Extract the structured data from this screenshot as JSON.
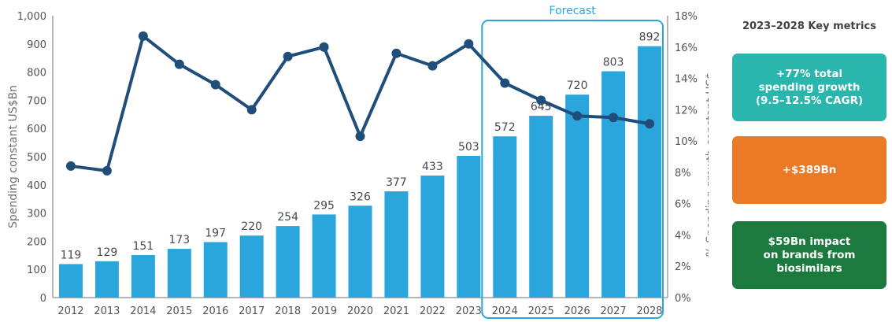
{
  "chart_data": {
    "type": "bar",
    "categories": [
      "2012",
      "2013",
      "2014",
      "2015",
      "2016",
      "2017",
      "2018",
      "2019",
      "2020",
      "2021",
      "2022",
      "2023",
      "2024",
      "2025",
      "2026",
      "2027",
      "2028"
    ],
    "series": [
      {
        "kind": "bar",
        "axis": "left",
        "values": [
          119,
          129,
          151,
          173,
          197,
          220,
          254,
          295,
          326,
          377,
          433,
          503,
          572,
          645,
          720,
          803,
          892
        ]
      },
      {
        "kind": "line",
        "axis": "right",
        "values": [
          8.4,
          8.1,
          16.7,
          14.9,
          13.6,
          12.0,
          15.4,
          16.0,
          10.3,
          15.6,
          14.8,
          16.2,
          13.7,
          12.6,
          11.6,
          11.5,
          11.1
        ]
      }
    ],
    "ylabel": "Spending constant US$Bn",
    "y2label": "% Spending growth constant US$",
    "ylim": [
      0,
      1000
    ],
    "yticks": [
      "0",
      "100",
      "200",
      "300",
      "400",
      "500",
      "600",
      "700",
      "800",
      "900",
      "1,000"
    ],
    "y2lim": [
      0,
      18
    ],
    "y2ticks": [
      "0%",
      "2%",
      "4%",
      "6%",
      "8%",
      "10%",
      "12%",
      "14%",
      "16%",
      "18%"
    ],
    "annotation": {
      "label": "Forecast",
      "from": "2024",
      "to": "2028"
    },
    "grid": false,
    "legend": "none"
  },
  "metrics": {
    "title": "2023–2028 Key metrics",
    "items": [
      {
        "text": "+77% total\nspending growth\n(9.5–12.5% CAGR)",
        "color": "#2bb6ad"
      },
      {
        "text": "+$389Bn",
        "color": "#ea7a26"
      },
      {
        "text": "$59Bn impact\non brands from\nbiosimilars",
        "color": "#1d7a3f"
      }
    ]
  },
  "colors": {
    "bar": "#2aa6dc",
    "line": "#1e4e79",
    "forecast_box": "#2aa6dc",
    "axis": "#9aa0a6"
  }
}
